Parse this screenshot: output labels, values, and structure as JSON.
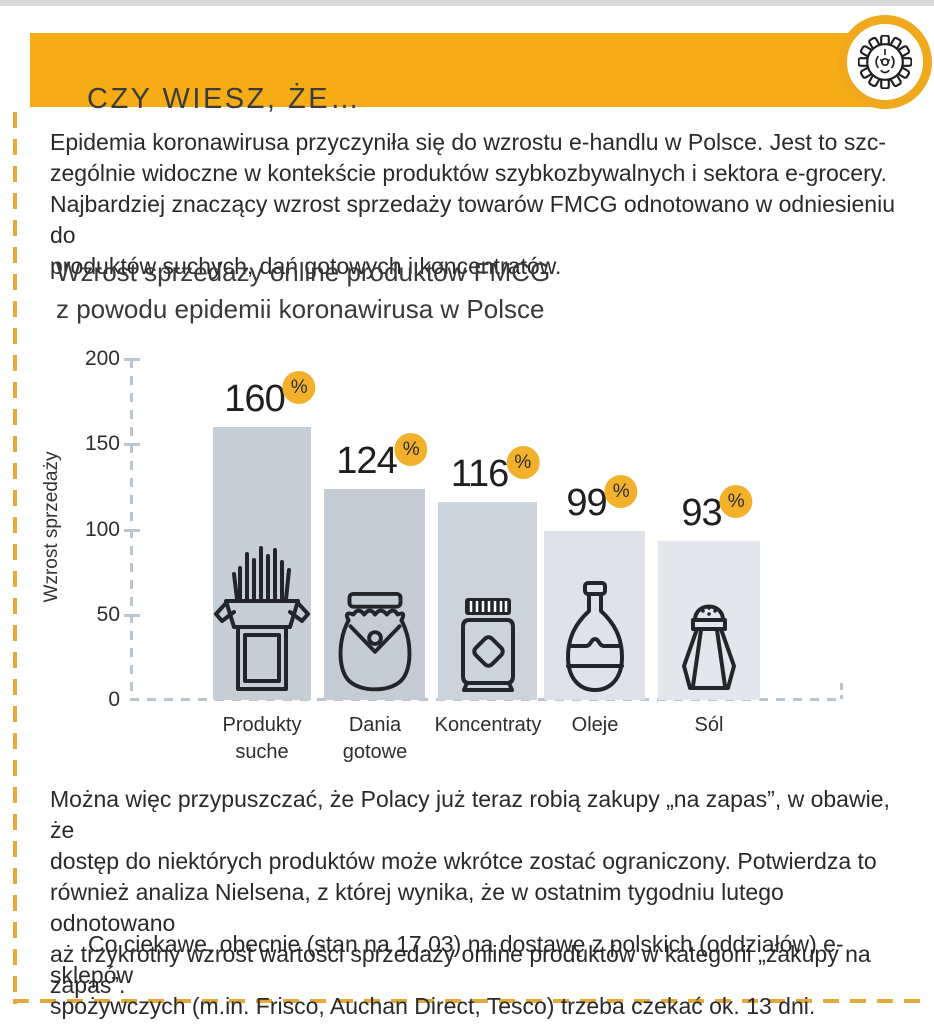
{
  "header": {
    "title": "CZY WIESZ, ŻE…",
    "badge_icon": "gear-icon"
  },
  "intro": {
    "lines": [
      "Epidemia koronawirusa przyczyniła się do wzrostu e-handlu w Polsce. Jest to szc-",
      "zególnie widoczne w kontekście produktów szybkozbywalnych i sektora e-grocery.",
      "Najbardziej znaczący wzrost sprzedaży towarów FMCG odnotowano w odniesieniu do",
      "produktów suchych, dań gotowych i koncentratów."
    ]
  },
  "chart": {
    "title_lines": [
      "Wzrost sprzedaży online produktów FMCG",
      "z powodu epidemii koronawirusa w Polsce"
    ],
    "y_label": "Wzrost sprzedaży",
    "ticks": [
      "200",
      "150",
      "100",
      "50",
      "0"
    ],
    "percent_sign": "%",
    "bars": [
      {
        "value": "160",
        "label1": "Produkty",
        "label2": "suche",
        "icon": "dry-products-box-icon"
      },
      {
        "value": "124",
        "label1": "Dania",
        "label2": "gotowe",
        "icon": "ready-meal-jar-icon"
      },
      {
        "value": "116",
        "label1": "Koncentraty",
        "icon": "concentrate-jar-icon"
      },
      {
        "value": "99",
        "label1": "Oleje",
        "icon": "oil-bottle-icon"
      },
      {
        "value": "93",
        "label1": "Sól",
        "icon": "salt-shaker-icon"
      }
    ]
  },
  "chart_data": {
    "type": "bar",
    "categories": [
      "Produkty suche",
      "Dania gotowe",
      "Koncentraty",
      "Oleje",
      "Sól"
    ],
    "values": [
      160,
      124,
      116,
      99,
      93
    ],
    "value_suffix": "%",
    "title": "Wzrost sprzedaży online produktów FMCG z powodu epidemii koronawirusa w Polsce",
    "xlabel": "",
    "ylabel": "Wzrost sprzedaży",
    "ylim": [
      0,
      200
    ],
    "yticks": [
      0,
      50,
      100,
      150,
      200
    ],
    "grid": false,
    "legend": false,
    "bar_colors": [
      "#c6cfd6",
      "#c4cdd5",
      "#ccd4db",
      "#dfe3e8",
      "#e3e6ea"
    ]
  },
  "outro": {
    "para1_lines": [
      "Można więc przypuszczać, że Polacy już teraz robią zakupy „na zapas”, w obawie, że",
      "dostęp do niektórych produktów może wkrótce zostać ograniczony. Potwierdza to",
      "również analiza Nielsena, z której wynika, że w ostatnim tygodniu lutego odnotowano",
      "aż trzykrotny wzrost wartości sprzedaży online produktów w kategorii „zakupy na",
      "zapas”."
    ],
    "para2_lines": [
      "Co ciekawe, obecnie (stan na 17.03) na dostawę z polskich (oddziałów) e-sklepów",
      "spożywczych (m.in. Frisco, Auchan Direct, Tesco) trzeba czekać ok. 13 dni."
    ]
  },
  "colors": {
    "header_yellow": "#f5ac15",
    "badge_ring_yellow": "#f0a81c",
    "percent_badge_yellow": "#f2b02b",
    "dashed_border_yellow": "#e4a93c",
    "axis_dash_gray": "#b9c6cf",
    "text_dark": "#2a2a2a"
  }
}
